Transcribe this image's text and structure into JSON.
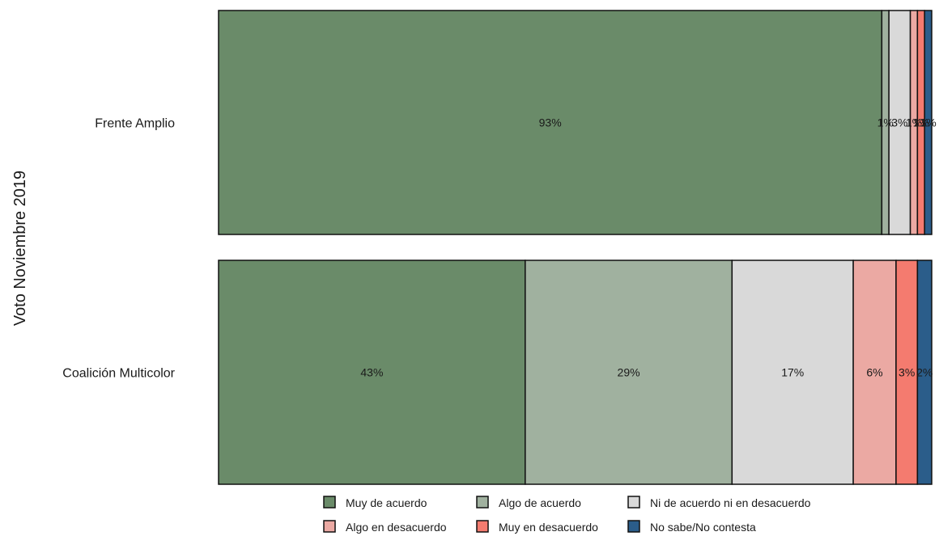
{
  "chart_data": {
    "type": "bar",
    "orientation": "horizontal",
    "stacked": "percent",
    "ylabel": "Voto Noviembre 2019",
    "categories": [
      "Frente Amplio",
      "Coalición Multicolor"
    ],
    "series": [
      {
        "name": "Muy de acuerdo",
        "color": "#6a8b69",
        "values": [
          93,
          43
        ],
        "labels": [
          "93%",
          "43%"
        ]
      },
      {
        "name": "Algo de acuerdo",
        "color": "#a0b19f",
        "values": [
          1,
          29
        ],
        "labels": [
          "1%",
          "29%"
        ]
      },
      {
        "name": "Ni de acuerdo ni en desacuerdo",
        "color": "#d9d9d9",
        "values": [
          3,
          17
        ],
        "labels": [
          "3%",
          "17%"
        ]
      },
      {
        "name": "Algo en desacuerdo",
        "color": "#eba9a3",
        "values": [
          1,
          6
        ],
        "labels": [
          "1%",
          "6%"
        ]
      },
      {
        "name": "Muy en desacuerdo",
        "color": "#f47b6f",
        "values": [
          1,
          3
        ],
        "labels": [
          "1%",
          "3%"
        ]
      },
      {
        "name": "No sabe/No contesta",
        "color": "#2b5d8a",
        "values": [
          1,
          2
        ],
        "labels": [
          "1%",
          "2%"
        ]
      }
    ],
    "legend_position": "bottom",
    "grid": false
  }
}
